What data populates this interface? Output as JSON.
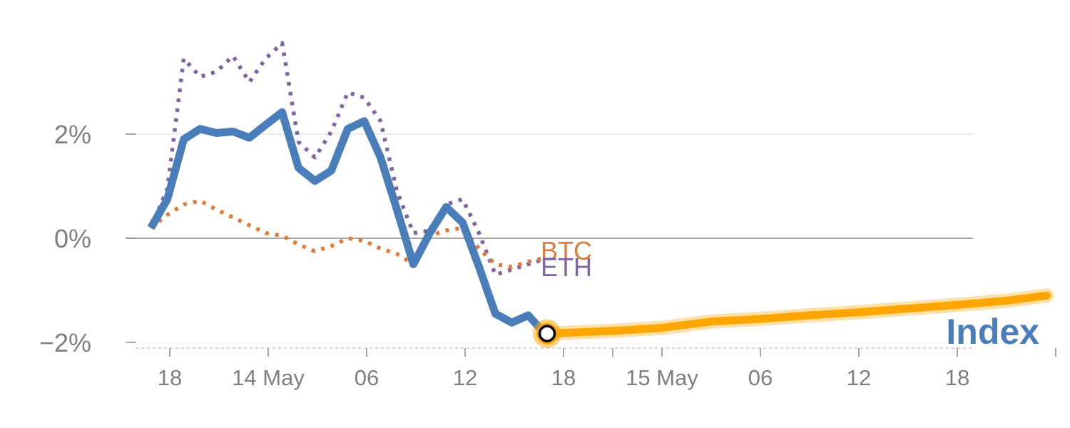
{
  "chart_data": {
    "type": "line",
    "title": "",
    "xlabel": "",
    "ylabel": "",
    "x_unit": "hours (relative, 0 = the 18:00 tick at the left of the axis)",
    "xlim": [
      -2,
      113
    ],
    "ylim": [
      -2.15,
      3.9
    ],
    "y_ticks": [
      2,
      0,
      -2
    ],
    "y_tick_labels": [
      "2%",
      "0%",
      "−2%"
    ],
    "x_ticks": [
      0,
      12,
      24,
      36,
      48,
      54,
      60,
      72,
      84,
      96,
      108
    ],
    "x_tick_labels": [
      "18",
      "14 May",
      "06",
      "12",
      "18",
      "15 May",
      "06",
      "12",
      "18"
    ],
    "x_tick_label_positions": [
      0,
      12,
      24,
      36,
      48,
      60,
      72,
      84,
      96
    ],
    "zero_line": true,
    "grid": "horizontal at 2%",
    "series": [
      {
        "name": "Index",
        "color": "#4a7ebb",
        "style": "solid",
        "x": [
          -2.3,
          -0.3,
          1.7,
          3.7,
          5.7,
          7.7,
          9.7,
          11.7,
          13.7,
          15.7,
          17.7,
          19.7,
          21.7,
          23.7,
          25.7,
          27.7,
          29.7,
          31.7,
          33.7,
          35.7,
          37.7,
          39.7,
          41.7,
          43.7,
          45.7
        ],
        "values": [
          0.2,
          0.75,
          1.9,
          2.1,
          2.02,
          2.05,
          1.93,
          2.18,
          2.42,
          1.35,
          1.1,
          1.3,
          2.1,
          2.25,
          1.55,
          0.55,
          -0.5,
          0.1,
          0.6,
          0.3,
          -0.55,
          -1.45,
          -1.62,
          -1.48,
          -1.83
        ]
      },
      {
        "name": "ETH",
        "color": "#8064a2",
        "style": "dotted",
        "x": [
          -2.3,
          -0.3,
          1.7,
          3.7,
          5.7,
          7.7,
          9.7,
          11.7,
          13.7,
          15.7,
          17.7,
          19.7,
          21.7,
          23.7,
          25.7,
          27.7,
          29.7,
          31.7,
          33.7,
          35.7,
          37.7,
          39.7,
          41.7,
          43.7,
          45.7
        ],
        "values": [
          0.2,
          0.95,
          3.45,
          3.1,
          3.2,
          3.5,
          3.0,
          3.45,
          3.75,
          1.85,
          1.55,
          2.05,
          2.8,
          2.7,
          2.25,
          0.9,
          0.1,
          0.15,
          0.65,
          0.75,
          0.1,
          -0.7,
          -0.6,
          -0.5,
          -0.4
        ]
      },
      {
        "name": "BTC",
        "color": "#e07b39",
        "style": "dotted",
        "x": [
          -2.3,
          -0.3,
          1.7,
          3.7,
          5.7,
          7.7,
          9.7,
          11.7,
          13.7,
          15.7,
          17.7,
          19.7,
          21.7,
          23.7,
          25.7,
          27.7,
          29.7,
          31.7,
          33.7,
          35.7,
          37.7,
          39.7,
          41.7,
          43.7,
          45.7
        ],
        "values": [
          0.2,
          0.45,
          0.65,
          0.72,
          0.55,
          0.4,
          0.25,
          0.1,
          0.05,
          -0.12,
          -0.25,
          -0.15,
          0.0,
          -0.05,
          -0.2,
          -0.3,
          -0.5,
          0.05,
          0.15,
          0.2,
          -0.2,
          -0.5,
          -0.55,
          -0.45,
          -0.38
        ]
      },
      {
        "name": "Index",
        "color": "#ffa500",
        "style": "projection",
        "x": [
          46,
          54,
          60,
          66,
          72,
          78,
          84,
          90,
          96,
          102,
          106.9
        ],
        "values": [
          -1.83,
          -1.78,
          -1.72,
          -1.6,
          -1.55,
          -1.48,
          -1.42,
          -1.35,
          -1.28,
          -1.2,
          -1.1
        ]
      }
    ],
    "marker": {
      "x": 46,
      "value": -1.83
    },
    "annotations": [
      {
        "text": "BTC",
        "color": "#e07b39"
      },
      {
        "text": "ETH",
        "color": "#8064a2"
      },
      {
        "text": "Index",
        "color": "#4a7ebb"
      }
    ]
  }
}
